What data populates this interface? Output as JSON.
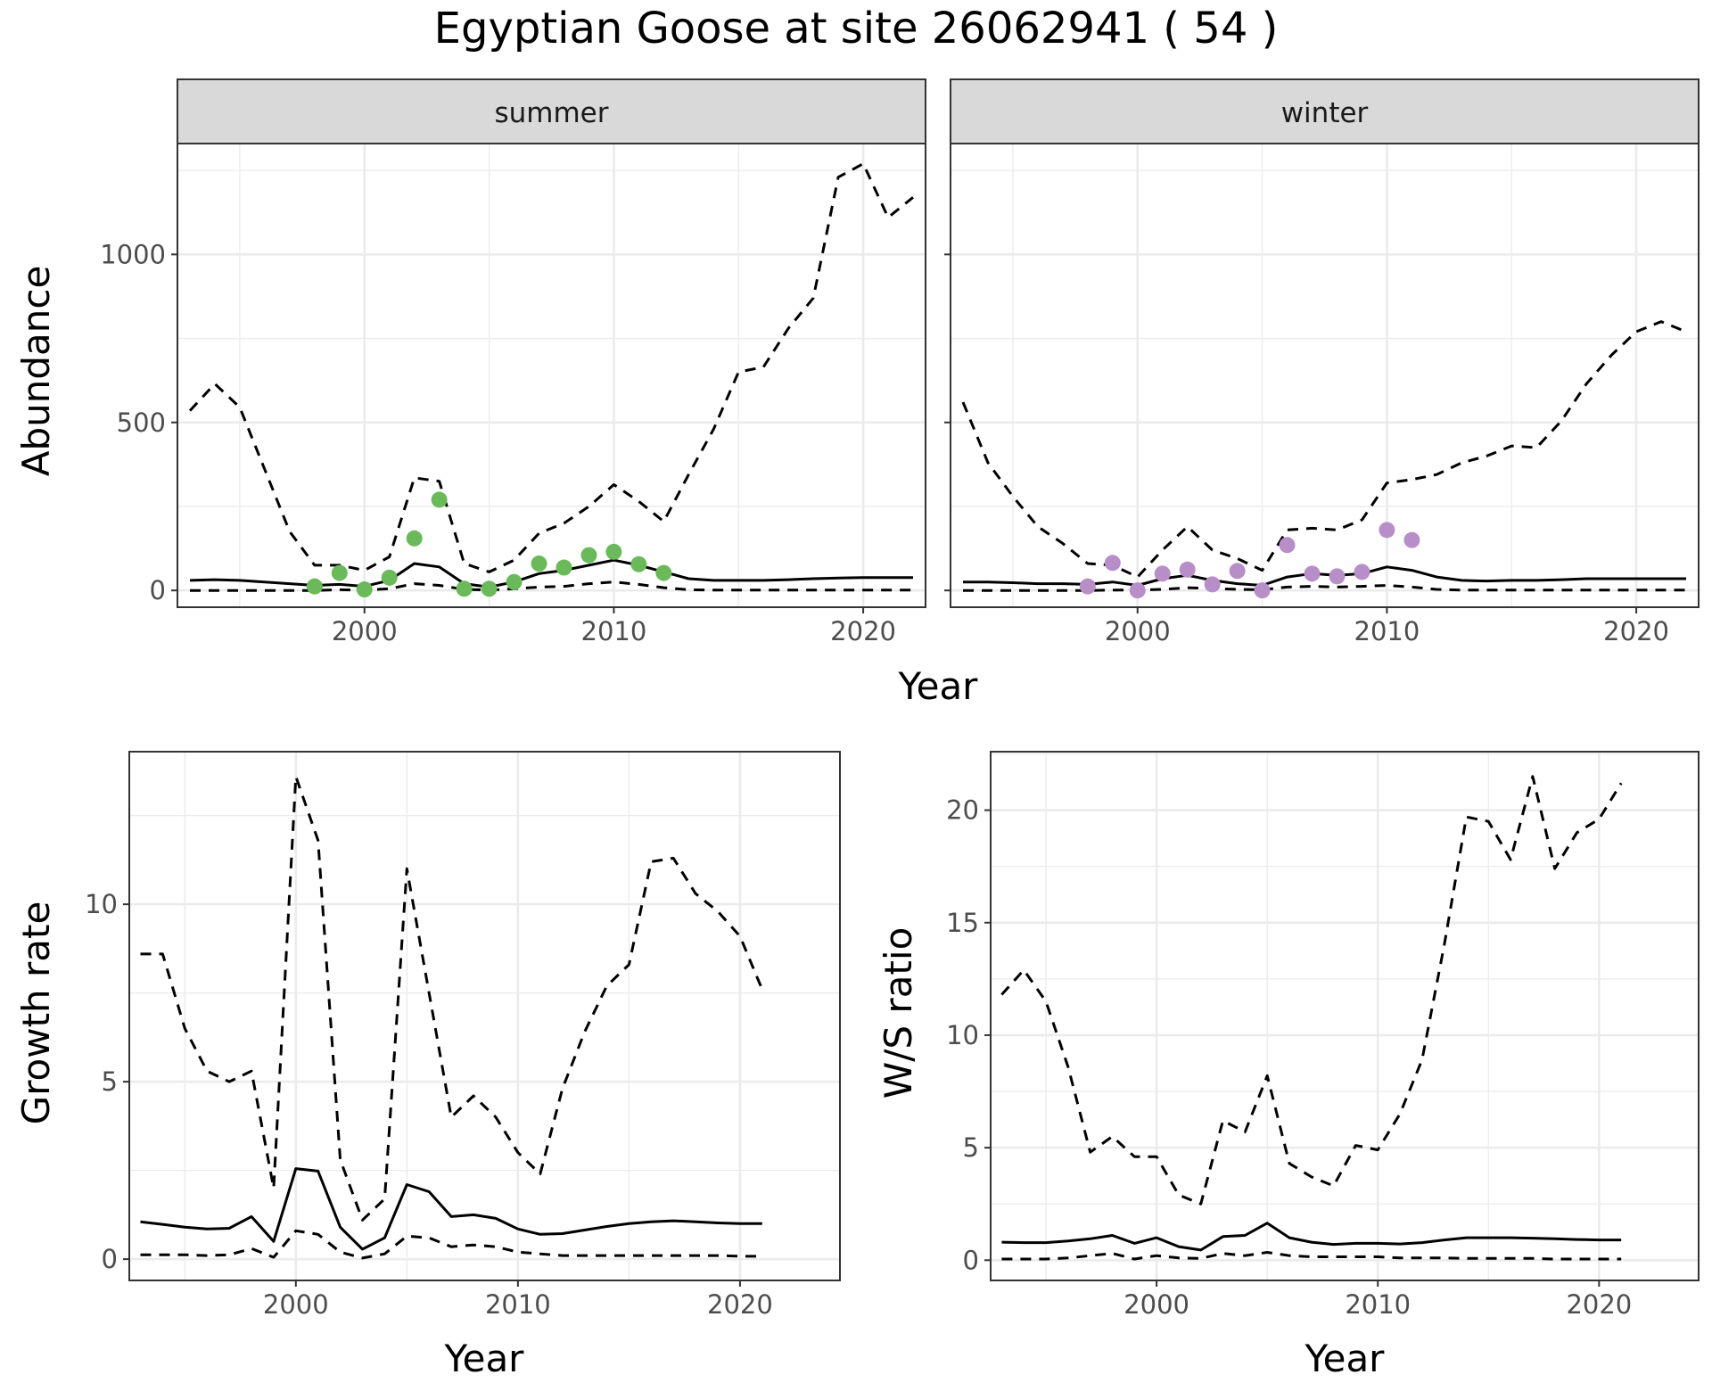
{
  "title": "Egyptian Goose at site 26062941 ( 54 )",
  "chart_data": [
    {
      "type": "line",
      "panel": "summer",
      "strip_label": "summer",
      "xlabel": "Year",
      "ylabel": "Abundance",
      "xlim": [
        1992.5,
        2022.5
      ],
      "ylim": [
        -50,
        1330
      ],
      "x_ticks": [
        2000,
        2010,
        2020
      ],
      "y_ticks": [
        0,
        500,
        1000
      ],
      "grid": true,
      "point_color": "#6aba5a",
      "series": [
        {
          "style": "solid",
          "x": [
            1993,
            1994,
            1995,
            1996,
            1997,
            1998,
            1999,
            2000,
            2001,
            2002,
            2003,
            2004,
            2005,
            2006,
            2007,
            2008,
            2009,
            2010,
            2011,
            2012,
            2013,
            2014,
            2015,
            2016,
            2017,
            2018,
            2019,
            2020,
            2021,
            2022
          ],
          "y": [
            30,
            32,
            30,
            25,
            20,
            15,
            18,
            12,
            30,
            80,
            70,
            20,
            10,
            25,
            50,
            60,
            75,
            90,
            75,
            55,
            35,
            30,
            30,
            30,
            32,
            35,
            37,
            38,
            38,
            38
          ]
        },
        {
          "style": "dashed",
          "x": [
            1993,
            1994,
            1995,
            1996,
            1997,
            1998,
            1999,
            2000,
            2001,
            2002,
            2003,
            2004,
            2005,
            2006,
            2007,
            2008,
            2009,
            2010,
            2011,
            2012,
            2013,
            2014,
            2015,
            2016,
            2017,
            2018,
            2019,
            2020,
            2021,
            2022
          ],
          "y": [
            535,
            615,
            545,
            360,
            175,
            75,
            75,
            60,
            100,
            335,
            325,
            80,
            55,
            90,
            170,
            200,
            250,
            315,
            265,
            205,
            345,
            480,
            650,
            665,
            780,
            870,
            1230,
            1270,
            1110,
            1170
          ]
        },
        {
          "style": "dashed",
          "x": [
            1993,
            1994,
            1995,
            1996,
            1997,
            1998,
            1999,
            2000,
            2001,
            2002,
            2003,
            2004,
            2005,
            2006,
            2007,
            2008,
            2009,
            2010,
            2011,
            2012,
            2013,
            2014,
            2015,
            2016,
            2017,
            2018,
            2019,
            2020,
            2021,
            2022
          ],
          "y": [
            0,
            0,
            0,
            0,
            0,
            0,
            2,
            1,
            5,
            20,
            15,
            3,
            1,
            5,
            10,
            12,
            20,
            25,
            18,
            8,
            2,
            1,
            1,
            1,
            1,
            1,
            1,
            1,
            1,
            1
          ]
        },
        {
          "style": "points",
          "x": [
            1998,
            1999,
            2000,
            2001,
            2002,
            2003,
            2004,
            2005,
            2006,
            2007,
            2008,
            2009,
            2010,
            2011,
            2012
          ],
          "y": [
            12,
            52,
            3,
            38,
            155,
            270,
            5,
            5,
            25,
            80,
            68,
            105,
            115,
            78,
            52
          ]
        }
      ]
    },
    {
      "type": "line",
      "panel": "winter",
      "strip_label": "winter",
      "xlabel": "Year",
      "ylabel": "Abundance",
      "xlim": [
        1992.5,
        2022.5
      ],
      "ylim": [
        -50,
        1330
      ],
      "x_ticks": [
        2000,
        2010,
        2020
      ],
      "y_ticks": [
        0,
        500,
        1000
      ],
      "grid": true,
      "point_color": "#b78ec8",
      "series": [
        {
          "style": "solid",
          "x": [
            1993,
            1994,
            1995,
            1996,
            1997,
            1998,
            1999,
            2000,
            2001,
            2002,
            2003,
            2004,
            2005,
            2006,
            2007,
            2008,
            2009,
            2010,
            2011,
            2012,
            2013,
            2014,
            2015,
            2016,
            2017,
            2018,
            2019,
            2020,
            2021,
            2022
          ],
          "y": [
            25,
            25,
            23,
            20,
            20,
            18,
            25,
            15,
            35,
            45,
            30,
            20,
            15,
            40,
            50,
            45,
            50,
            70,
            60,
            40,
            30,
            28,
            30,
            30,
            32,
            35,
            35,
            35,
            35,
            35
          ]
        },
        {
          "style": "dashed",
          "x": [
            1993,
            1994,
            1995,
            1996,
            1997,
            1998,
            1999,
            2000,
            2001,
            2002,
            2003,
            2004,
            2005,
            2006,
            2007,
            2008,
            2009,
            2010,
            2011,
            2012,
            2013,
            2014,
            2015,
            2016,
            2017,
            2018,
            2019,
            2020,
            2021,
            2022
          ],
          "y": [
            560,
            380,
            280,
            190,
            140,
            80,
            75,
            40,
            120,
            190,
            120,
            95,
            60,
            180,
            185,
            180,
            210,
            320,
            330,
            345,
            380,
            400,
            430,
            425,
            505,
            615,
            700,
            770,
            800,
            770
          ]
        },
        {
          "style": "dashed",
          "x": [
            1993,
            1994,
            1995,
            1996,
            1997,
            1998,
            1999,
            2000,
            2001,
            2002,
            2003,
            2004,
            2005,
            2006,
            2007,
            2008,
            2009,
            2010,
            2011,
            2012,
            2013,
            2014,
            2015,
            2016,
            2017,
            2018,
            2019,
            2020,
            2021,
            2022
          ],
          "y": [
            0,
            0,
            0,
            0,
            0,
            0,
            1,
            1,
            3,
            8,
            6,
            3,
            2,
            10,
            12,
            10,
            12,
            15,
            10,
            3,
            1,
            1,
            1,
            1,
            1,
            1,
            1,
            1,
            1,
            1
          ]
        },
        {
          "style": "points",
          "x": [
            1998,
            1999,
            2000,
            2001,
            2002,
            2003,
            2004,
            2005,
            2006,
            2007,
            2008,
            2009,
            2010,
            2011
          ],
          "y": [
            12,
            82,
            0,
            50,
            62,
            18,
            58,
            0,
            135,
            50,
            42,
            55,
            180,
            150
          ]
        }
      ]
    },
    {
      "type": "line",
      "panel": "growth-rate",
      "xlabel": "Year",
      "ylabel": "Growth rate",
      "xlim": [
        1992.5,
        2024.5
      ],
      "ylim": [
        -0.6,
        14.3
      ],
      "x_ticks": [
        2000,
        2010,
        2020
      ],
      "y_ticks": [
        0,
        5,
        10
      ],
      "grid": true,
      "series": [
        {
          "style": "solid",
          "x": [
            1993,
            1994,
            1995,
            1996,
            1997,
            1998,
            1999,
            2000,
            2001,
            2002,
            2003,
            2004,
            2005,
            2006,
            2007,
            2008,
            2009,
            2010,
            2011,
            2012,
            2013,
            2014,
            2015,
            2016,
            2017,
            2018,
            2019,
            2020,
            2021
          ],
          "y": [
            1.05,
            0.98,
            0.9,
            0.85,
            0.87,
            1.2,
            0.5,
            2.55,
            2.48,
            0.9,
            0.28,
            0.6,
            2.1,
            1.9,
            1.2,
            1.25,
            1.15,
            0.85,
            0.7,
            0.72,
            0.82,
            0.92,
            1.0,
            1.05,
            1.08,
            1.05,
            1.02,
            1.0,
            1.0
          ]
        },
        {
          "style": "dashed",
          "x": [
            1993,
            1994,
            1995,
            1996,
            1997,
            1998,
            1999,
            2000,
            2001,
            2002,
            2003,
            2004,
            2005,
            2006,
            2007,
            2008,
            2009,
            2010,
            2011,
            2012,
            2013,
            2014,
            2015,
            2016,
            2017,
            2018,
            2019,
            2020,
            2021
          ],
          "y": [
            8.6,
            8.6,
            6.5,
            5.3,
            5.0,
            5.3,
            2.0,
            13.6,
            11.8,
            2.8,
            1.1,
            1.7,
            11.0,
            7.5,
            4.0,
            4.6,
            4.0,
            3.0,
            2.4,
            4.8,
            6.4,
            7.7,
            8.3,
            11.2,
            11.3,
            10.3,
            9.8,
            9.1,
            7.6
          ]
        },
        {
          "style": "dashed",
          "x": [
            1993,
            1994,
            1995,
            1996,
            1997,
            1998,
            1999,
            2000,
            2001,
            2002,
            2003,
            2004,
            2005,
            2006,
            2007,
            2008,
            2009,
            2010,
            2011,
            2012,
            2013,
            2014,
            2015,
            2016,
            2017,
            2018,
            2019,
            2020,
            2021
          ],
          "y": [
            0.12,
            0.12,
            0.12,
            0.1,
            0.12,
            0.3,
            0.05,
            0.8,
            0.7,
            0.2,
            0.03,
            0.15,
            0.65,
            0.6,
            0.35,
            0.4,
            0.35,
            0.2,
            0.15,
            0.1,
            0.1,
            0.1,
            0.1,
            0.1,
            0.1,
            0.1,
            0.1,
            0.08,
            0.08
          ]
        }
      ]
    },
    {
      "type": "line",
      "panel": "ws-ratio",
      "xlabel": "Year",
      "ylabel": "W/S ratio",
      "xlim": [
        1992.5,
        2024.5
      ],
      "ylim": [
        -0.9,
        22.6
      ],
      "x_ticks": [
        2000,
        2010,
        2020
      ],
      "y_ticks": [
        0,
        5,
        10,
        15,
        20
      ],
      "grid": true,
      "series": [
        {
          "style": "solid",
          "x": [
            1993,
            1994,
            1995,
            1996,
            1997,
            1998,
            1999,
            2000,
            2001,
            2002,
            2003,
            2004,
            2005,
            2006,
            2007,
            2008,
            2009,
            2010,
            2011,
            2012,
            2013,
            2014,
            2015,
            2016,
            2017,
            2018,
            2019,
            2020,
            2021
          ],
          "y": [
            0.8,
            0.78,
            0.78,
            0.85,
            0.95,
            1.1,
            0.75,
            1.0,
            0.6,
            0.45,
            1.05,
            1.1,
            1.65,
            1.0,
            0.8,
            0.7,
            0.75,
            0.75,
            0.72,
            0.78,
            0.9,
            1.0,
            1.0,
            1.0,
            0.98,
            0.95,
            0.92,
            0.9,
            0.9
          ]
        },
        {
          "style": "dashed",
          "x": [
            1993,
            1994,
            1995,
            1996,
            1997,
            1998,
            1999,
            2000,
            2001,
            2002,
            2003,
            2004,
            2005,
            2006,
            2007,
            2008,
            2009,
            2010,
            2011,
            2012,
            2013,
            2014,
            2015,
            2016,
            2017,
            2018,
            2019,
            2020,
            2021
          ],
          "y": [
            11.8,
            12.9,
            11.5,
            8.6,
            4.8,
            5.5,
            4.6,
            4.6,
            2.9,
            2.5,
            6.2,
            5.7,
            8.2,
            4.3,
            3.7,
            3.3,
            5.1,
            4.9,
            6.5,
            8.9,
            14.0,
            19.7,
            19.5,
            17.8,
            21.5,
            17.4,
            19.0,
            19.6,
            21.2
          ]
        },
        {
          "style": "dashed",
          "x": [
            1993,
            1994,
            1995,
            1996,
            1997,
            1998,
            1999,
            2000,
            2001,
            2002,
            2003,
            2004,
            2005,
            2006,
            2007,
            2008,
            2009,
            2010,
            2011,
            2012,
            2013,
            2014,
            2015,
            2016,
            2017,
            2018,
            2019,
            2020,
            2021
          ],
          "y": [
            0.05,
            0.05,
            0.05,
            0.1,
            0.2,
            0.3,
            0.05,
            0.2,
            0.1,
            0.08,
            0.3,
            0.2,
            0.35,
            0.2,
            0.15,
            0.15,
            0.15,
            0.15,
            0.1,
            0.1,
            0.1,
            0.08,
            0.08,
            0.08,
            0.08,
            0.05,
            0.05,
            0.05,
            0.05
          ]
        }
      ]
    }
  ]
}
